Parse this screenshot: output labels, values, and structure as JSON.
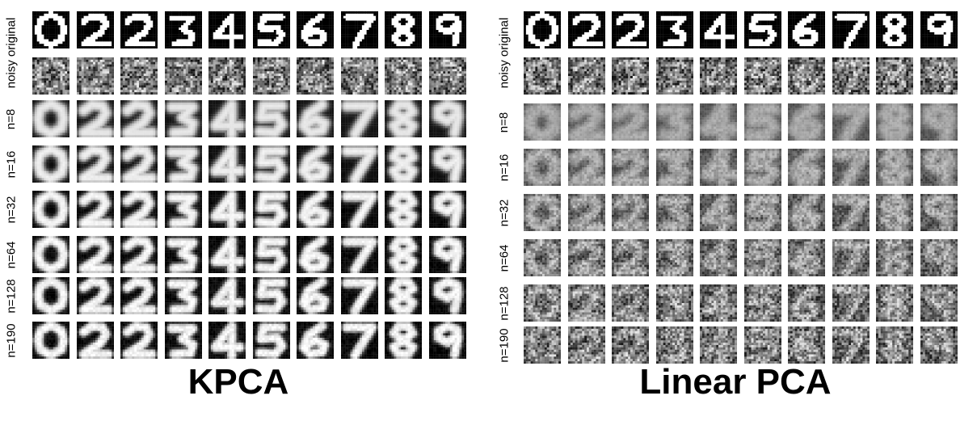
{
  "digits": [
    "0",
    "2",
    "2",
    "3",
    "4",
    "5",
    "6",
    "7",
    "8",
    "9"
  ],
  "panels": [
    {
      "id": "kpca",
      "title": "KPCA",
      "rows": [
        "noisy original",
        "n=8",
        "n=16",
        "n=32",
        "n=64",
        "n=128",
        "n=190"
      ],
      "row_blur": [
        0,
        1.3,
        1.2,
        1.0,
        0.9,
        0.85,
        0.8
      ],
      "row_noise": [
        0.9,
        0.02,
        0.05,
        0.08,
        0.12,
        0.15,
        0.18
      ],
      "row_contrast": [
        0.25,
        0.85,
        0.9,
        0.95,
        0.95,
        0.95,
        0.95
      ]
    },
    {
      "id": "pca",
      "title": "Linear PCA",
      "rows": [
        "noisy original",
        "n=8",
        "n=16",
        "n=32",
        "n=64",
        "n=128",
        "n=190"
      ],
      "row_blur": [
        0,
        1.8,
        1.4,
        1.0,
        0.8,
        0.6,
        0.5
      ],
      "row_noise": [
        0.9,
        0.15,
        0.3,
        0.45,
        0.6,
        0.75,
        0.85
      ],
      "row_contrast": [
        0.25,
        0.35,
        0.35,
        0.33,
        0.3,
        0.28,
        0.25
      ]
    }
  ],
  "colors": {
    "foreground": "#ffffff",
    "background": "#000000",
    "page": "#ffffff"
  }
}
